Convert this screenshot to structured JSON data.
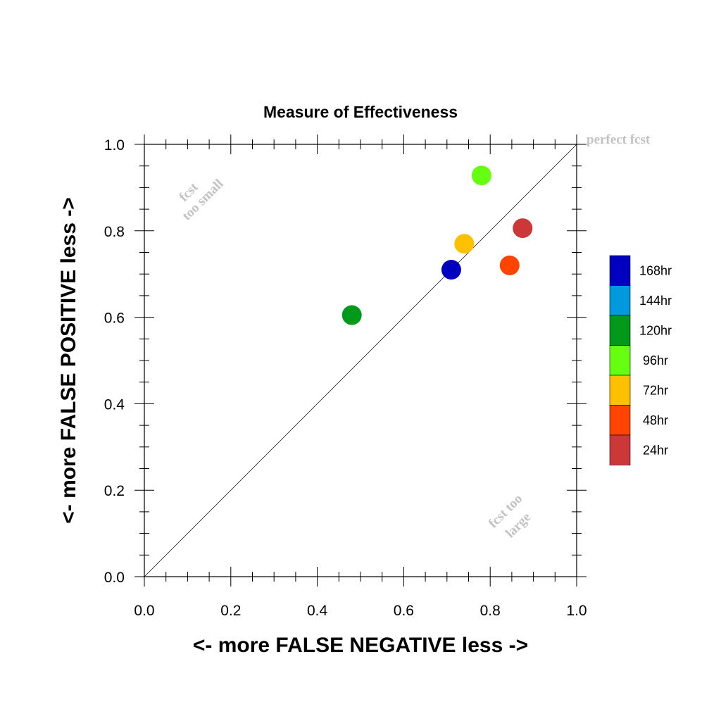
{
  "chart_data": {
    "type": "scatter",
    "title": "Measure of Effectiveness",
    "xlabel": "<- more   FALSE NEGATIVE   less ->",
    "ylabel": "<- more   FALSE POSITIVE   less ->",
    "xlim": [
      0.0,
      1.0
    ],
    "ylim": [
      0.0,
      1.0
    ],
    "x_ticks": [
      "0.0",
      "0.2",
      "0.4",
      "0.6",
      "0.8",
      "1.0"
    ],
    "y_ticks": [
      "0.0",
      "0.2",
      "0.4",
      "0.6",
      "0.8",
      "1.0"
    ],
    "grid": false,
    "reference_line": "diagonal y = x",
    "annotations": {
      "perfect": "perfect fcst",
      "too_small_1": "fcst",
      "too_small_2": "too small",
      "too_large_1": "fcst too",
      "too_large_2": "large"
    },
    "legend_position": "right",
    "legend": [
      {
        "label": "168hr",
        "color": "#0000c0"
      },
      {
        "label": "144hr",
        "color": "#0099dd"
      },
      {
        "label": "120hr",
        "color": "#00991a"
      },
      {
        "label": "96hr",
        "color": "#66ff11"
      },
      {
        "label": "72hr",
        "color": "#ffc000"
      },
      {
        "label": "48hr",
        "color": "#ff4400"
      },
      {
        "label": "24hr",
        "color": "#cc3838"
      }
    ],
    "points": [
      {
        "label": "168hr",
        "x": 0.71,
        "y": 0.71,
        "color": "#0000c0"
      },
      {
        "label": "120hr",
        "x": 0.48,
        "y": 0.605,
        "color": "#00991a"
      },
      {
        "label": "96hr",
        "x": 0.78,
        "y": 0.928,
        "color": "#66ff11"
      },
      {
        "label": "72hr",
        "x": 0.74,
        "y": 0.77,
        "color": "#ffc000"
      },
      {
        "label": "48hr",
        "x": 0.845,
        "y": 0.72,
        "color": "#ff4400"
      },
      {
        "label": "24hr",
        "x": 0.875,
        "y": 0.806,
        "color": "#cc3838"
      }
    ]
  }
}
